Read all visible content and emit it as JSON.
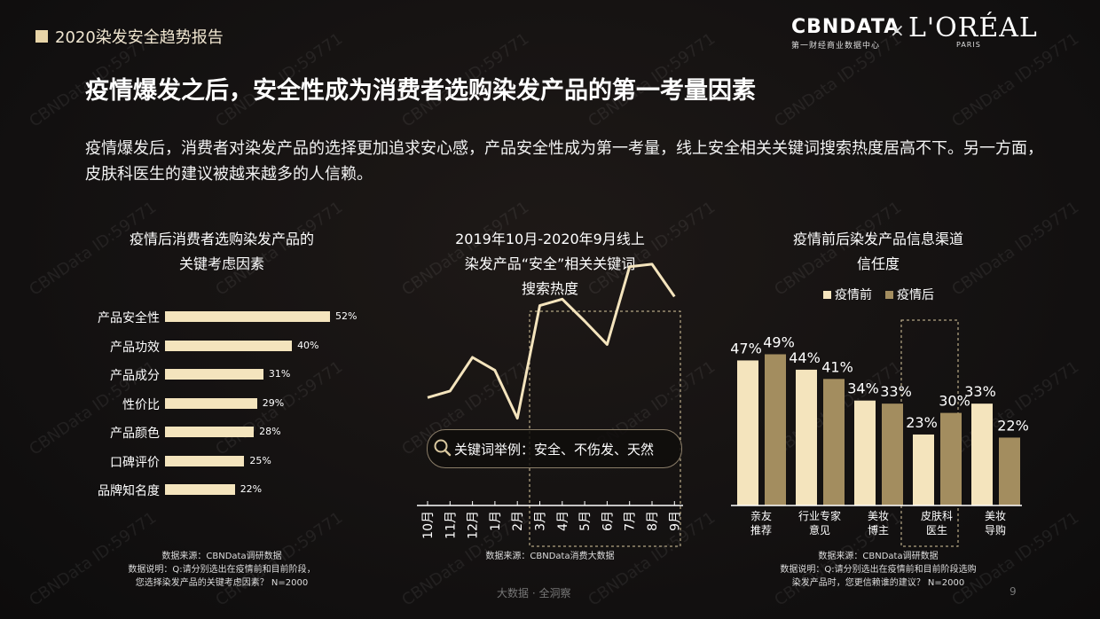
{
  "header": {
    "report_title": "2020染发安全趋势报告"
  },
  "logos": {
    "cbn": "CBNDATA",
    "cbn_sub": "第一财经商业数据中心",
    "times": "×",
    "loreal": "L'ORÉAL",
    "paris": "PARIS"
  },
  "main_title": "疫情爆发之后，安全性成为消费者选购染发产品的第一考量因素",
  "description": "疫情爆发后，消费者对染发产品的选择更加追求安心感，产品安全性成为第一考量，线上安全相关关键词搜索热度居高不下。另一方面，皮肤科医生的建议被越来越多的人信赖。",
  "watermark": "CBNData ID:59771",
  "footer": {
    "center": "大数据 · 全洞察",
    "page": "9"
  },
  "colors": {
    "light_gold": "#f4e4bd",
    "dark_gold": "#a38d5f",
    "line": "#f4e4bd"
  },
  "search_icon": "magnifier-icon",
  "chart_data": [
    {
      "type": "bar",
      "orientation": "horizontal",
      "title_line1": "疫情后消费者选购染发产品的",
      "title_line2": "关键考虑因素",
      "categories": [
        "产品安全性",
        "产品功效",
        "产品成分",
        "性价比",
        "产品颜色",
        "口碑评价",
        "品牌知名度"
      ],
      "values": [
        52,
        40,
        31,
        29,
        28,
        25,
        22
      ],
      "value_labels": [
        "52%",
        "40%",
        "31%",
        "29%",
        "28%",
        "25%",
        "22%"
      ],
      "source_line1": "数据来源：CBNData调研数据",
      "source_line2": "数据说明：Q:请分别选出在疫情前和目前阶段，",
      "source_line3": "您选择染发产品的关键考虑因素？ N=2000"
    },
    {
      "type": "line",
      "title_line1": "2019年10月-2020年9月线上",
      "title_line2": "染发产品“安全”相关关键词",
      "title_line3": "搜索热度",
      "x": [
        "10月",
        "11月",
        "12月",
        "1月",
        "2月",
        "3月",
        "4月",
        "5月",
        "6月",
        "7月",
        "8月",
        "9月"
      ],
      "y": [
        19,
        24,
        50,
        40,
        3,
        90,
        95,
        78,
        60,
        120,
        122,
        97
      ],
      "y_axis_shown": false,
      "highlight_range": [
        "3月",
        "9月"
      ],
      "keyword_box": "关键词举例：安全、不伤发、天然",
      "source": "数据来源：CBNData消费大数据"
    },
    {
      "type": "bar",
      "orientation": "vertical",
      "title_line1": "疫情前后染发产品信息渠道",
      "title_line2": "信任度",
      "categories": [
        [
          "亲友",
          "推荐"
        ],
        [
          "行业专家",
          "意见"
        ],
        [
          "美妆",
          "博主"
        ],
        [
          "皮肤科",
          "医生"
        ],
        [
          "美妆",
          "导购"
        ]
      ],
      "series": [
        {
          "name": "疫情前",
          "values": [
            47,
            44,
            34,
            23,
            33
          ],
          "labels": [
            "47%",
            "44%",
            "34%",
            "23%",
            "33%"
          ]
        },
        {
          "name": "疫情后",
          "values": [
            49,
            41,
            33,
            30,
            22
          ],
          "labels": [
            "49%",
            "41%",
            "33%",
            "30%",
            "22%"
          ]
        }
      ],
      "highlight_category": "皮肤科医生",
      "source_line1": "数据来源：CBNData调研数据",
      "source_line2": "数据说明：Q:请分别选出在疫情前和目前阶段选购",
      "source_line3": "染发产品时，您更信赖谁的建议？ N=2000"
    }
  ]
}
